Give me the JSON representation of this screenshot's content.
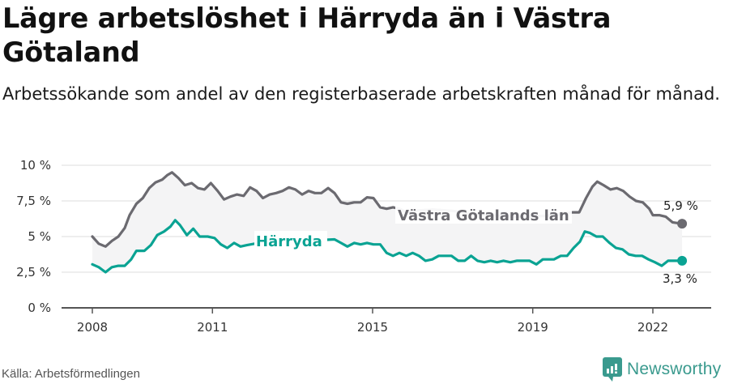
{
  "header": {
    "title": "Lägre arbetslöshet i Härryda än i Västra Götaland",
    "subtitle": "Arbetssökande som andel av den registerbaserade arbetskraften månad för månad."
  },
  "footer": {
    "source": "Källa: Arbetsförmedlingen",
    "brand": "Newsworthy",
    "brand_icon": "bar-chart-speech-bubble-icon"
  },
  "colors": {
    "series_vg": "#6b6a70",
    "series_harryda": "#0aa393",
    "band_fill": "#f4f4f5",
    "grid": "#e3e3e3",
    "axis": "#555555",
    "brand": "#3a9a8e"
  },
  "chart_data": {
    "type": "line",
    "title": "Lägre arbetslöshet i Härryda än i Västra Götaland",
    "subtitle": "Arbetssökande som andel av den registerbaserade arbetskraften månad för månad.",
    "xlabel": "",
    "ylabel": "",
    "ylim": [
      0,
      10
    ],
    "yticks": [
      0,
      2.5,
      5,
      7.5,
      10
    ],
    "ytick_labels": [
      "0 %",
      "2,5 %",
      "5 %",
      "7,5 %",
      "10 %"
    ],
    "xticks": [
      2008,
      2011,
      2015,
      2019,
      2022
    ],
    "xtick_labels": [
      "2008",
      "2011",
      "2015",
      "2019",
      "2022"
    ],
    "xlim": [
      2007.75,
      2023.3
    ],
    "grid": true,
    "legend": "inline labels",
    "series": [
      {
        "name": "Västra Götalands län",
        "end_label": "5,9 %",
        "x": [
          2008.0,
          2008.16,
          2008.33,
          2008.49,
          2008.65,
          2008.81,
          2008.93,
          2009.1,
          2009.26,
          2009.42,
          2009.58,
          2009.75,
          2009.87,
          2009.99,
          2010.15,
          2010.31,
          2010.48,
          2010.64,
          2010.8,
          2010.96,
          2011.13,
          2011.29,
          2011.45,
          2011.61,
          2011.78,
          2011.94,
          2012.1,
          2012.26,
          2012.43,
          2012.59,
          2012.75,
          2012.91,
          2013.07,
          2013.24,
          2013.4,
          2013.56,
          2013.72,
          2013.89,
          2014.05,
          2014.21,
          2014.37,
          2014.54,
          2014.7,
          2014.86,
          2015.02,
          2015.19,
          2015.35,
          2015.51,
          2015.67,
          2015.84,
          2016.0,
          2016.5,
          2017.0,
          2017.5,
          2018.0,
          2018.5,
          2019.0,
          2019.5,
          2020.0,
          2020.16,
          2020.33,
          2020.49,
          2020.61,
          2020.77,
          2020.94,
          2021.1,
          2021.26,
          2021.42,
          2021.58,
          2021.75,
          2021.91,
          2022.0,
          2022.16,
          2022.32,
          2022.49,
          2022.73
        ],
        "values": [
          5.0,
          4.5,
          4.3,
          4.7,
          5.0,
          5.6,
          6.5,
          7.3,
          7.7,
          8.4,
          8.8,
          9.0,
          9.3,
          9.5,
          9.1,
          8.6,
          8.75,
          8.4,
          8.3,
          8.75,
          8.2,
          7.6,
          7.8,
          7.95,
          7.85,
          8.45,
          8.2,
          7.7,
          7.95,
          8.05,
          8.2,
          8.45,
          8.3,
          7.95,
          8.2,
          8.05,
          8.05,
          8.4,
          8.05,
          7.4,
          7.3,
          7.4,
          7.4,
          7.75,
          7.7,
          7.05,
          6.95,
          7.05,
          6.95,
          6.7,
          6.8,
          6.9,
          6.8,
          6.6,
          6.5,
          6.4,
          6.4,
          6.5,
          6.7,
          6.7,
          7.7,
          8.5,
          8.85,
          8.6,
          8.3,
          8.4,
          8.2,
          7.8,
          7.5,
          7.4,
          6.95,
          6.5,
          6.5,
          6.4,
          6.0,
          5.9
        ]
      },
      {
        "name": "Härryda",
        "end_label": "3,3 %",
        "x": [
          2008.0,
          2008.16,
          2008.33,
          2008.49,
          2008.65,
          2008.81,
          2008.97,
          2009.1,
          2009.3,
          2009.46,
          2009.62,
          2009.79,
          2009.95,
          2010.07,
          2010.19,
          2010.36,
          2010.52,
          2010.68,
          2010.88,
          2011.05,
          2011.21,
          2011.37,
          2011.54,
          2011.7,
          2011.86,
          2012.15,
          2014.05,
          2014.21,
          2014.37,
          2014.54,
          2014.7,
          2014.86,
          2015.02,
          2015.19,
          2015.35,
          2015.51,
          2015.67,
          2015.84,
          2016.0,
          2016.16,
          2016.32,
          2016.49,
          2016.65,
          2016.81,
          2016.97,
          2017.14,
          2017.3,
          2017.46,
          2017.62,
          2017.79,
          2017.95,
          2018.11,
          2018.27,
          2018.44,
          2018.6,
          2018.76,
          2018.92,
          2019.09,
          2019.25,
          2019.37,
          2019.53,
          2019.7,
          2019.86,
          2020.02,
          2020.18,
          2020.3,
          2020.43,
          2020.59,
          2020.75,
          2020.92,
          2021.08,
          2021.24,
          2021.4,
          2021.57,
          2021.73,
          2021.89,
          2022.05,
          2022.22,
          2022.38,
          2022.54,
          2022.73
        ],
        "values": [
          3.05,
          2.85,
          2.5,
          2.85,
          2.95,
          2.95,
          3.4,
          4.0,
          4.0,
          4.4,
          5.1,
          5.35,
          5.7,
          6.15,
          5.8,
          5.1,
          5.55,
          5.0,
          5.0,
          4.9,
          4.45,
          4.2,
          4.55,
          4.3,
          4.4,
          4.55,
          4.8,
          4.55,
          4.3,
          4.55,
          4.45,
          4.55,
          4.45,
          4.45,
          3.85,
          3.65,
          3.85,
          3.65,
          3.85,
          3.65,
          3.3,
          3.4,
          3.65,
          3.65,
          3.65,
          3.3,
          3.3,
          3.65,
          3.3,
          3.2,
          3.3,
          3.2,
          3.3,
          3.2,
          3.3,
          3.3,
          3.3,
          3.05,
          3.4,
          3.4,
          3.4,
          3.65,
          3.65,
          4.2,
          4.65,
          5.35,
          5.25,
          5.0,
          5.0,
          4.55,
          4.2,
          4.1,
          3.75,
          3.65,
          3.65,
          3.4,
          3.2,
          2.95,
          3.3,
          3.3,
          3.3
        ]
      }
    ],
    "annotations": [
      {
        "text": "Västra Götalands län",
        "series": "Västra Götalands län"
      },
      {
        "text": "Härryda",
        "series": "Härryda"
      },
      {
        "text": "5,9 %",
        "series": "Västra Götalands län",
        "position": "last point"
      },
      {
        "text": "3,3 %",
        "series": "Härryda",
        "position": "last point"
      }
    ]
  }
}
